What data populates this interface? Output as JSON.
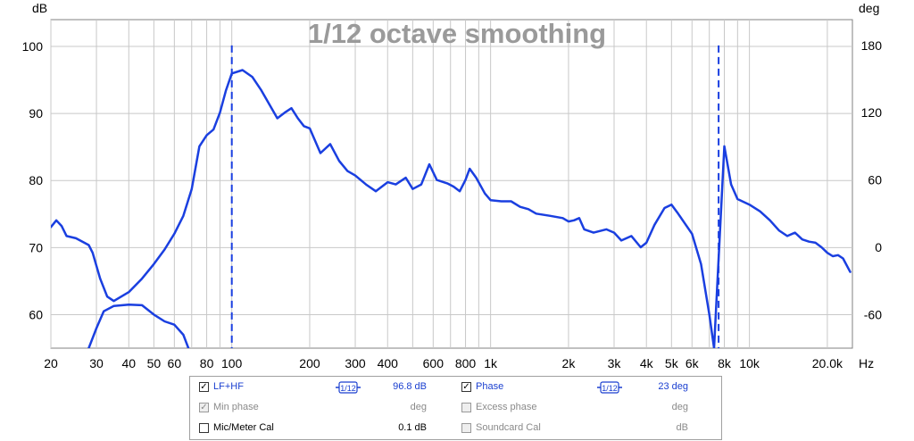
{
  "chart_data": {
    "type": "line",
    "title": "1/12 octave smoothing",
    "ylabel_left": "dB",
    "ylabel_right": "deg",
    "x_unit_label": "Hz",
    "x_scale": "log",
    "xlim": [
      20,
      25000
    ],
    "ylim_left": [
      55,
      104
    ],
    "ylim_right": [
      -90,
      203
    ],
    "x_ticks": [
      20,
      30,
      40,
      50,
      60,
      80,
      100,
      200,
      300,
      400,
      600,
      800,
      1000,
      2000,
      3000,
      4000,
      5000,
      6000,
      8000,
      10000,
      20000
    ],
    "x_tick_labels": [
      "20",
      "30",
      "40",
      "50",
      "60",
      "80",
      "100",
      "200",
      "300",
      "400",
      "600",
      "800",
      "1k",
      "2k",
      "3k",
      "4k",
      "5k",
      "6k",
      "8k",
      "10k",
      "20.0k"
    ],
    "y_ticks_left": [
      60,
      70,
      80,
      90,
      100
    ],
    "y_ticks_left_labels": [
      "60",
      "70",
      "80",
      "90",
      "100"
    ],
    "y_ticks_right": [
      -60,
      0,
      60,
      120,
      180
    ],
    "y_ticks_right_labels": [
      "-60",
      "0",
      "60",
      "120",
      "180"
    ],
    "grid": true,
    "line_color": "#1a3fe0",
    "series": [
      {
        "axis": "left",
        "style": "solid",
        "points": [
          [
            28,
            55
          ],
          [
            30,
            58
          ],
          [
            32,
            60.5
          ],
          [
            35,
            61.3
          ],
          [
            40,
            61.5
          ],
          [
            45,
            61.4
          ],
          [
            50,
            60
          ],
          [
            55,
            59
          ],
          [
            60,
            58.5
          ],
          [
            65,
            57
          ],
          [
            68,
            55
          ]
        ]
      },
      {
        "axis": "right",
        "style": "solid",
        "points": [
          [
            20,
            18
          ],
          [
            21,
            24
          ],
          [
            22,
            19
          ],
          [
            23,
            10
          ],
          [
            25,
            8
          ],
          [
            28,
            2
          ],
          [
            29,
            -5
          ],
          [
            31,
            -28
          ],
          [
            33,
            -44
          ],
          [
            35,
            -48
          ],
          [
            40,
            -40
          ],
          [
            45,
            -28
          ],
          [
            50,
            -15
          ],
          [
            55,
            -2
          ],
          [
            60,
            12
          ],
          [
            65,
            28
          ],
          [
            70,
            52
          ],
          [
            75,
            90
          ],
          [
            80,
            100
          ],
          [
            85,
            105
          ],
          [
            90,
            120
          ],
          [
            95,
            140
          ],
          [
            100,
            155
          ],
          [
            110,
            158
          ],
          [
            120,
            152
          ],
          [
            130,
            140
          ],
          [
            140,
            127
          ],
          [
            150,
            115
          ],
          [
            160,
            120
          ],
          [
            170,
            124
          ],
          [
            180,
            115
          ],
          [
            190,
            108
          ],
          [
            200,
            106
          ],
          [
            220,
            84
          ],
          [
            240,
            92
          ],
          [
            260,
            77
          ],
          [
            280,
            68
          ],
          [
            300,
            64
          ],
          [
            330,
            56
          ],
          [
            360,
            50
          ],
          [
            400,
            58
          ],
          [
            430,
            56
          ],
          [
            470,
            62
          ],
          [
            500,
            52
          ],
          [
            540,
            56
          ],
          [
            580,
            74
          ],
          [
            620,
            60
          ],
          [
            680,
            57
          ],
          [
            720,
            54
          ],
          [
            760,
            50
          ],
          [
            800,
            60
          ],
          [
            830,
            70
          ],
          [
            880,
            62
          ],
          [
            950,
            48
          ],
          [
            1000,
            42
          ],
          [
            1100,
            41
          ],
          [
            1200,
            41
          ],
          [
            1300,
            36
          ],
          [
            1400,
            34
          ],
          [
            1500,
            30
          ],
          [
            1700,
            28
          ],
          [
            1900,
            26
          ],
          [
            2000,
            23
          ],
          [
            2100,
            24
          ],
          [
            2200,
            26
          ],
          [
            2300,
            16
          ],
          [
            2500,
            13
          ],
          [
            2800,
            16
          ],
          [
            3000,
            13
          ],
          [
            3200,
            6
          ],
          [
            3500,
            10
          ],
          [
            3800,
            0
          ],
          [
            4000,
            4
          ],
          [
            4300,
            20
          ],
          [
            4700,
            35
          ],
          [
            5000,
            38
          ],
          [
            5300,
            30
          ],
          [
            5600,
            22
          ],
          [
            6000,
            12
          ],
          [
            6500,
            -15
          ],
          [
            7000,
            -60
          ],
          [
            7300,
            -90
          ],
          [
            8000,
            90
          ],
          [
            8500,
            56
          ],
          [
            9000,
            43
          ],
          [
            10000,
            38
          ],
          [
            11000,
            32
          ],
          [
            12000,
            24
          ],
          [
            13000,
            15
          ],
          [
            14000,
            10
          ],
          [
            15000,
            13
          ],
          [
            16000,
            7
          ],
          [
            17000,
            5
          ],
          [
            18000,
            4
          ],
          [
            19000,
            0
          ],
          [
            20000,
            -5
          ],
          [
            21000,
            -8
          ],
          [
            22000,
            -7
          ],
          [
            23000,
            -10
          ],
          [
            24500,
            -22
          ]
        ]
      },
      {
        "axis": "right",
        "style": "dashed",
        "points": [
          [
            100,
            180
          ],
          [
            100,
            -90
          ]
        ]
      },
      {
        "axis": "right",
        "style": "dashed",
        "points": [
          [
            7600,
            180
          ],
          [
            7600,
            -90
          ]
        ]
      }
    ]
  },
  "legend": {
    "rows": [
      {
        "left": {
          "checked": true,
          "enabled": true,
          "label": "LF+HF",
          "smoothing": "1/12",
          "value": "96.8 dB"
        },
        "right": {
          "checked": true,
          "enabled": true,
          "label": "Phase",
          "smoothing": "1/12",
          "value": "23 deg"
        }
      },
      {
        "left": {
          "checked": true,
          "enabled": false,
          "label": "Min phase",
          "value": "deg"
        },
        "right": {
          "checked": false,
          "enabled": false,
          "label": "Excess phase",
          "value": "deg"
        }
      },
      {
        "left": {
          "checked": false,
          "enabled": true,
          "label": "Mic/Meter Cal",
          "value": "0.1 dB"
        },
        "right": {
          "checked": false,
          "enabled": false,
          "label": "Soundcard Cal",
          "value": "dB"
        }
      }
    ]
  }
}
